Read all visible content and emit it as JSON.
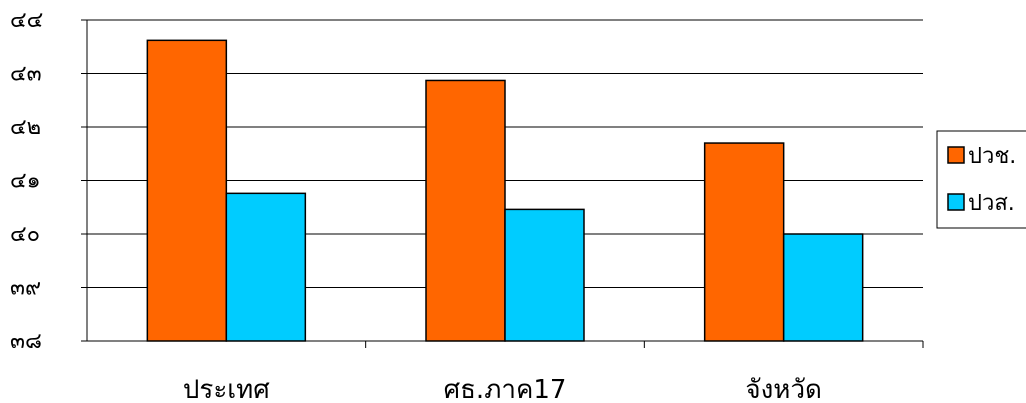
{
  "chart_data": {
    "type": "bar",
    "categories": [
      "ประเทศ",
      "ศธ.ภาค17",
      "จังหวัด"
    ],
    "series": [
      {
        "name": "ปวช.",
        "values": [
          43.62,
          42.87,
          41.7
        ],
        "color": "#FF6600"
      },
      {
        "name": "ปวส.",
        "values": [
          40.76,
          40.46,
          40.0
        ],
        "color": "#00CCFF"
      }
    ],
    "ylim": [
      38,
      44
    ],
    "yticks": [
      "๓๘",
      "๓๙",
      "๔๐",
      "๔๑",
      "๔๒",
      "๔๓",
      "๔๔"
    ],
    "grid": true,
    "legend": "right"
  }
}
